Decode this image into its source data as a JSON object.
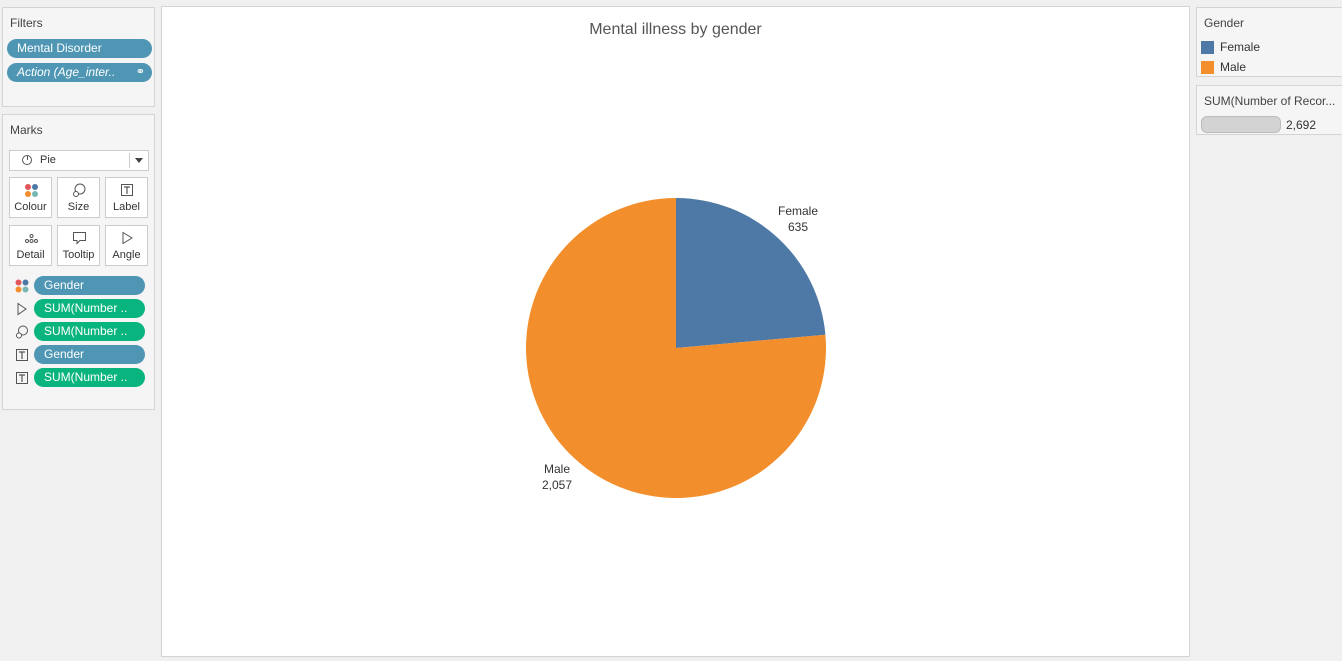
{
  "filters": {
    "title": "Filters",
    "pills": [
      {
        "label": "Mental Disorder"
      },
      {
        "label": "Action (Age_inter.."
      }
    ]
  },
  "marks": {
    "title": "Marks",
    "mark_type": "Pie",
    "buttons": [
      {
        "label": "Colour"
      },
      {
        "label": "Size"
      },
      {
        "label": "Label"
      },
      {
        "label": "Detail"
      },
      {
        "label": "Tooltip"
      },
      {
        "label": "Angle"
      }
    ],
    "shelf": [
      {
        "icon": "colour-icon",
        "label": "Gender",
        "color": "#4e96b4"
      },
      {
        "icon": "angle-icon",
        "label": "SUM(Number ..",
        "color": "#0ab47e"
      },
      {
        "icon": "size-icon",
        "label": "SUM(Number ..",
        "color": "#0ab47e"
      },
      {
        "icon": "label-icon",
        "label": "Gender",
        "color": "#4e96b4"
      },
      {
        "icon": "label-icon",
        "label": "SUM(Number ..",
        "color": "#0ab47e"
      }
    ]
  },
  "chart": {
    "title": "Mental illness by gender"
  },
  "chart_data": {
    "type": "pie",
    "title": "Mental illness by gender",
    "slices": [
      {
        "name": "Female",
        "value": 635,
        "label": "635",
        "color": "#4e79a7"
      },
      {
        "name": "Male",
        "value": 2057,
        "label": "2,057",
        "color": "#f28e2b"
      }
    ]
  },
  "legend": {
    "title": "Gender",
    "items": [
      {
        "label": "Female",
        "color": "#4e79a7"
      },
      {
        "label": "Male",
        "color": "#f28e2b"
      }
    ]
  },
  "size_legend": {
    "title": "SUM(Number of Recor...",
    "value": "2,692"
  }
}
